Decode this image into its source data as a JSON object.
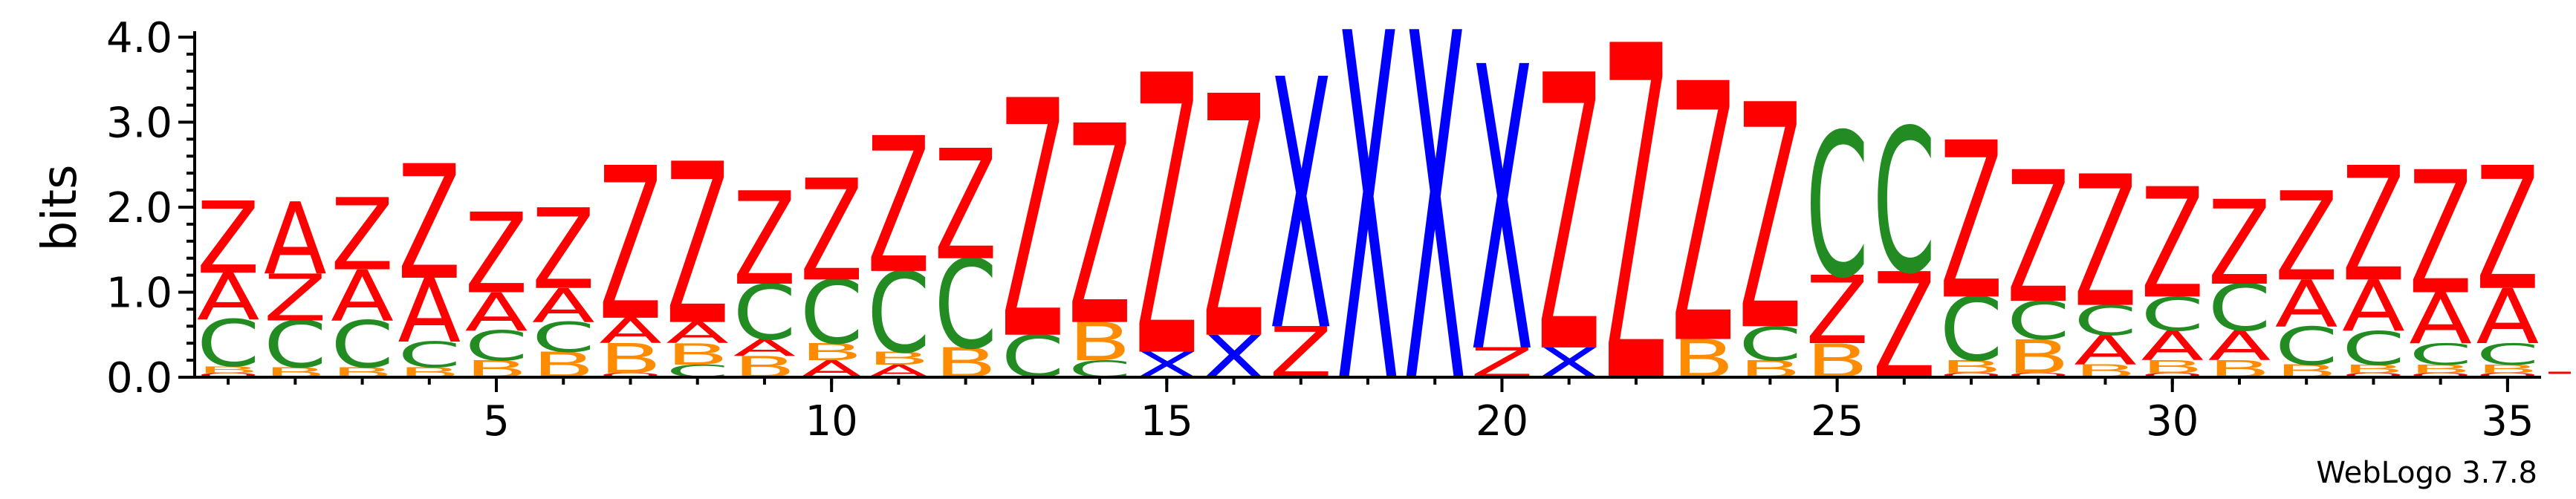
{
  "chart_data": {
    "type": "sequence-logo",
    "ylabel": "bits",
    "ylim": [
      0,
      4.0
    ],
    "y_ticks": [
      "0.0",
      "1.0",
      "2.0",
      "3.0",
      "4.0"
    ],
    "y_tick_values": [
      0,
      1,
      2,
      3,
      4
    ],
    "x_tick_positions": [
      5,
      10,
      15,
      20,
      25,
      30,
      35
    ],
    "x_ticks": [
      "5",
      "10",
      "15",
      "20",
      "25",
      "30",
      "35"
    ],
    "x_range": [
      1,
      35
    ],
    "footer": "WebLogo 3.7.8",
    "colors": {
      "Z": "#ff0000",
      "A": "#ff0000",
      "C": "#228b22",
      "B": "#ff8c00",
      "X": "#0000ff",
      "O": "#ff0000"
    },
    "positions": [
      {
        "pos": 1,
        "stack": [
          [
            "O",
            0.05
          ],
          [
            "B",
            0.08
          ],
          [
            "C",
            0.55
          ],
          [
            "A",
            0.55
          ],
          [
            "Z",
            0.85
          ]
        ]
      },
      {
        "pos": 2,
        "stack": [
          [
            "B",
            0.12
          ],
          [
            "C",
            0.55
          ],
          [
            "Z",
            0.55
          ],
          [
            "A",
            0.85
          ]
        ]
      },
      {
        "pos": 3,
        "stack": [
          [
            "B",
            0.12
          ],
          [
            "C",
            0.55
          ],
          [
            "A",
            0.6
          ],
          [
            "Z",
            0.85
          ]
        ]
      },
      {
        "pos": 4,
        "stack": [
          [
            "B",
            0.12
          ],
          [
            "C",
            0.3
          ],
          [
            "A",
            0.75
          ],
          [
            "Z",
            1.35
          ]
        ]
      },
      {
        "pos": 5,
        "stack": [
          [
            "B",
            0.2
          ],
          [
            "C",
            0.35
          ],
          [
            "A",
            0.45
          ],
          [
            "Z",
            0.95
          ]
        ]
      },
      {
        "pos": 6,
        "stack": [
          [
            "B",
            0.3
          ],
          [
            "C",
            0.35
          ],
          [
            "A",
            0.4
          ],
          [
            "Z",
            0.95
          ]
        ]
      },
      {
        "pos": 7,
        "stack": [
          [
            "O",
            0.05
          ],
          [
            "B",
            0.35
          ],
          [
            "A",
            0.3
          ],
          [
            "Z",
            1.8
          ]
        ]
      },
      {
        "pos": 8,
        "stack": [
          [
            "C",
            0.15
          ],
          [
            "B",
            0.25
          ],
          [
            "A",
            0.25
          ],
          [
            "Z",
            1.9
          ]
        ]
      },
      {
        "pos": 9,
        "stack": [
          [
            "B",
            0.25
          ],
          [
            "A",
            0.2
          ],
          [
            "C",
            0.65
          ],
          [
            "Z",
            1.1
          ]
        ]
      },
      {
        "pos": 10,
        "stack": [
          [
            "A",
            0.2
          ],
          [
            "B",
            0.2
          ],
          [
            "C",
            0.75
          ],
          [
            "Z",
            1.2
          ]
        ]
      },
      {
        "pos": 11,
        "stack": [
          [
            "A",
            0.15
          ],
          [
            "B",
            0.15
          ],
          [
            "C",
            0.95
          ],
          [
            "Z",
            1.6
          ]
        ]
      },
      {
        "pos": 12,
        "stack": [
          [
            "B",
            0.35
          ],
          [
            "C",
            1.05
          ],
          [
            "Z",
            1.3
          ]
        ]
      },
      {
        "pos": 13,
        "stack": [
          [
            "C",
            0.5
          ],
          [
            "Z",
            2.8
          ]
        ]
      },
      {
        "pos": 14,
        "stack": [
          [
            "C",
            0.2
          ],
          [
            "B",
            0.45
          ],
          [
            "Z",
            2.35
          ]
        ]
      },
      {
        "pos": 15,
        "stack": [
          [
            "X",
            0.3
          ],
          [
            "Z",
            3.3
          ]
        ]
      },
      {
        "pos": 16,
        "stack": [
          [
            "X",
            0.5
          ],
          [
            "Z",
            2.85
          ]
        ]
      },
      {
        "pos": 17,
        "stack": [
          [
            "Z",
            0.6
          ],
          [
            "X",
            2.95
          ]
        ]
      },
      {
        "pos": 18,
        "stack": [
          [
            "X",
            4.1
          ]
        ]
      },
      {
        "pos": 19,
        "stack": [
          [
            "X",
            4.1
          ]
        ]
      },
      {
        "pos": 20,
        "stack": [
          [
            "Z",
            0.35
          ],
          [
            "X",
            3.35
          ]
        ]
      },
      {
        "pos": 21,
        "stack": [
          [
            "X",
            0.35
          ],
          [
            "Z",
            3.25
          ]
        ]
      },
      {
        "pos": 22,
        "stack": [
          [
            "Z",
            3.95
          ]
        ]
      },
      {
        "pos": 23,
        "stack": [
          [
            "B",
            0.45
          ],
          [
            "Z",
            3.05
          ]
        ]
      },
      {
        "pos": 24,
        "stack": [
          [
            "B",
            0.2
          ],
          [
            "C",
            0.4
          ],
          [
            "Z",
            2.65
          ]
        ]
      },
      {
        "pos": 25,
        "stack": [
          [
            "B",
            0.4
          ],
          [
            "Z",
            0.8
          ],
          [
            "C",
            1.7
          ]
        ]
      },
      {
        "pos": 26,
        "stack": [
          [
            "Z",
            1.25
          ],
          [
            "C",
            1.7
          ]
        ]
      },
      {
        "pos": 27,
        "stack": [
          [
            "O",
            0.05
          ],
          [
            "B",
            0.15
          ],
          [
            "C",
            0.75
          ],
          [
            "Z",
            1.85
          ]
        ]
      },
      {
        "pos": 28,
        "stack": [
          [
            "O",
            0.05
          ],
          [
            "B",
            0.4
          ],
          [
            "C",
            0.45
          ],
          [
            "Z",
            1.55
          ]
        ]
      },
      {
        "pos": 29,
        "stack": [
          [
            "B",
            0.15
          ],
          [
            "A",
            0.35
          ],
          [
            "C",
            0.35
          ],
          [
            "Z",
            1.55
          ]
        ]
      },
      {
        "pos": 30,
        "stack": [
          [
            "O",
            0.05
          ],
          [
            "B",
            0.15
          ],
          [
            "A",
            0.35
          ],
          [
            "C",
            0.4
          ],
          [
            "Z",
            1.3
          ]
        ]
      },
      {
        "pos": 31,
        "stack": [
          [
            "B",
            0.2
          ],
          [
            "A",
            0.35
          ],
          [
            "C",
            0.55
          ],
          [
            "Z",
            1.0
          ]
        ]
      },
      {
        "pos": 32,
        "stack": [
          [
            "B",
            0.15
          ],
          [
            "C",
            0.45
          ],
          [
            "A",
            0.55
          ],
          [
            "Z",
            1.05
          ]
        ]
      },
      {
        "pos": 33,
        "stack": [
          [
            "O",
            0.05
          ],
          [
            "B",
            0.1
          ],
          [
            "C",
            0.4
          ],
          [
            "A",
            0.6
          ],
          [
            "Z",
            1.35
          ]
        ]
      },
      {
        "pos": 34,
        "stack": [
          [
            "O",
            0.05
          ],
          [
            "B",
            0.1
          ],
          [
            "C",
            0.25
          ],
          [
            "A",
            0.6
          ],
          [
            "Z",
            1.45
          ]
        ]
      },
      {
        "pos": 35,
        "stack": [
          [
            "O",
            0.05
          ],
          [
            "B",
            0.1
          ],
          [
            "C",
            0.25
          ],
          [
            "A",
            0.65
          ],
          [
            "Z",
            1.45
          ]
        ]
      }
    ]
  }
}
